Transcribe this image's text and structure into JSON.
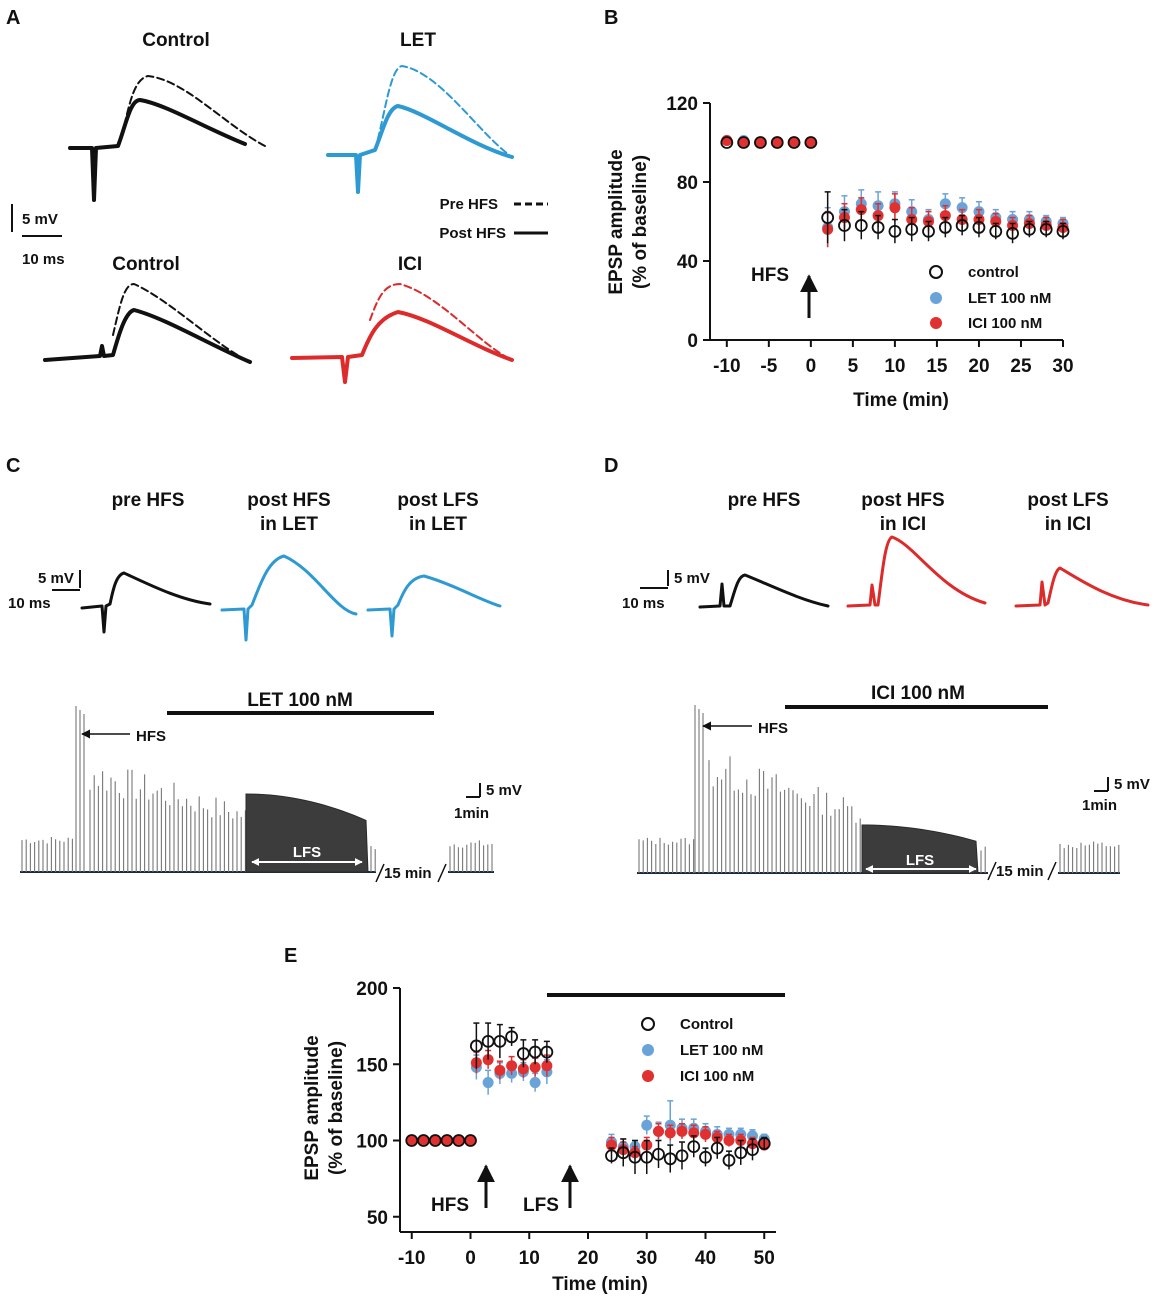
{
  "colors": {
    "control": "#111111",
    "let": "#2e9ad3",
    "ici": "#dd2a2a",
    "let_marker": "#6aa3d8",
    "ici_marker": "#e03030"
  },
  "panel_labels": {
    "a": "A",
    "b": "B",
    "c": "C",
    "d": "D",
    "e": "E"
  },
  "panel_a": {
    "titles": [
      "Control",
      "LET",
      "Control",
      "ICI"
    ],
    "scale_mv": "5 mV",
    "scale_ms": "10 ms",
    "legend_pre": "Pre HFS",
    "legend_post": "Post HFS"
  },
  "panel_c": {
    "titles": [
      "pre HFS",
      "post HFS",
      "in LET",
      "post LFS",
      "in LET"
    ],
    "scale_mv": "5 mV",
    "scale_ms": "10 ms",
    "drug_label": "LET 100 nM",
    "hfs_label": "HFS",
    "lfs_label": "LFS",
    "gap_label": "15 min",
    "scale2_mv": "5 mV",
    "scale2_min": "1min"
  },
  "panel_d": {
    "titles": [
      "pre HFS",
      "post HFS",
      "in ICI",
      "post LFS",
      "in ICI"
    ],
    "scale_mv": "5 mV",
    "scale_ms": "10 ms",
    "drug_label": "ICI 100 nM",
    "hfs_label": "HFS",
    "lfs_label": "LFS",
    "gap_label": "15 min",
    "scale2_mv": "5 mV",
    "scale2_min": "1min"
  },
  "chart_data": [
    {
      "panel": "B",
      "type": "scatter",
      "xlabel": "Time (min)",
      "ylabel_line1": "EPSP amplitude",
      "ylabel_line2": "(% of baseline)",
      "xlim": [
        -12,
        30
      ],
      "ylim": [
        0,
        120
      ],
      "xticks": [
        -10,
        -5,
        0,
        5,
        10,
        15,
        20,
        25,
        30
      ],
      "yticks": [
        0,
        40,
        80,
        120
      ],
      "annotation": "HFS",
      "annotation_x": 0,
      "x": [
        -10,
        -8,
        -6,
        -4,
        -2,
        0,
        2,
        4,
        6,
        8,
        10,
        12,
        14,
        16,
        18,
        20,
        22,
        24,
        26,
        28,
        30
      ],
      "series": [
        {
          "name": "control",
          "marker": "open",
          "values": [
            100,
            100,
            100,
            100,
            100,
            100,
            62,
            58,
            58,
            57,
            55,
            56,
            55,
            57,
            58,
            57,
            55,
            54,
            56,
            56,
            55
          ],
          "errors": [
            1,
            1,
            1,
            1,
            1,
            1,
            13,
            8,
            7,
            6,
            6,
            6,
            5,
            5,
            5,
            5,
            4,
            5,
            4,
            4,
            4
          ]
        },
        {
          "name": "LET 100 nM",
          "marker": "filled",
          "values": [
            101,
            101,
            100,
            100,
            100,
            100,
            57,
            65,
            69,
            68,
            69,
            65,
            61,
            69,
            67,
            65,
            62,
            61,
            61,
            60,
            59
          ],
          "errors": [
            1,
            1,
            1,
            1,
            1,
            1,
            10,
            8,
            7,
            7,
            6,
            6,
            5,
            5,
            5,
            5,
            4,
            4,
            4,
            3,
            3
          ]
        },
        {
          "name": "ICI 100 nM",
          "marker": "filled",
          "values": [
            101,
            100,
            100,
            100,
            100,
            100,
            56,
            62,
            66,
            63,
            67,
            61,
            60,
            63,
            61,
            61,
            60,
            58,
            59,
            58,
            57
          ],
          "errors": [
            1,
            1,
            1,
            1,
            1,
            1,
            9,
            7,
            6,
            6,
            7,
            6,
            5,
            5,
            5,
            5,
            4,
            4,
            4,
            4,
            4
          ]
        }
      ]
    },
    {
      "panel": "E",
      "type": "scatter",
      "xlabel": "Time (min)",
      "ylabel_line1": "EPSP amplitude",
      "ylabel_line2": "(% of baseline)",
      "xlim": [
        -12,
        52
      ],
      "ylim": [
        40,
        200
      ],
      "xticks": [
        -10,
        0,
        10,
        20,
        30,
        40,
        50
      ],
      "yticks": [
        50,
        100,
        150,
        200
      ],
      "annotations": [
        {
          "label": "HFS",
          "x": 0
        },
        {
          "label": "LFS",
          "x": 15
        }
      ],
      "drug_bar_start": 10,
      "x": [
        -10,
        -8,
        -6,
        -4,
        -2,
        0,
        1,
        3,
        5,
        7,
        9,
        11,
        13,
        15,
        24,
        26,
        28,
        30,
        32,
        34,
        36,
        38,
        40,
        42,
        44,
        46,
        48,
        50
      ],
      "series": [
        {
          "name": "Control",
          "marker": "open",
          "values": [
            100,
            100,
            100,
            100,
            100,
            100,
            162,
            165,
            165,
            168,
            157,
            158,
            158,
            null,
            90,
            92,
            89,
            89,
            91,
            88,
            90,
            96,
            89,
            95,
            87,
            92,
            94,
            98
          ],
          "errors": [
            1,
            1,
            1,
            1,
            1,
            1,
            15,
            12,
            11,
            6,
            9,
            8,
            7,
            null,
            5,
            9,
            11,
            11,
            9,
            9,
            9,
            7,
            6,
            7,
            6,
            8,
            7,
            4
          ]
        },
        {
          "name": "LET 100 nM",
          "marker": "filled",
          "values": [
            100,
            100,
            100,
            100,
            100,
            100,
            148,
            138,
            144,
            144,
            145,
            138,
            145,
            null,
            99,
            96,
            96,
            110,
            106,
            110,
            108,
            108,
            106,
            104,
            104,
            104,
            103,
            101
          ],
          "errors": [
            1,
            1,
            1,
            1,
            1,
            1,
            8,
            8,
            7,
            6,
            6,
            6,
            8,
            null,
            5,
            5,
            4,
            6,
            6,
            16,
            6,
            6,
            5,
            5,
            4,
            4,
            4,
            3
          ]
        },
        {
          "name": "ICI 100 nM",
          "marker": "filled",
          "values": [
            100,
            100,
            100,
            100,
            100,
            100,
            151,
            153,
            146,
            149,
            147,
            148,
            149,
            null,
            97,
            94,
            92,
            97,
            106,
            105,
            106,
            105,
            104,
            102,
            100,
            100,
            98,
            97
          ],
          "errors": [
            1,
            1,
            1,
            1,
            1,
            1,
            7,
            6,
            6,
            6,
            6,
            6,
            7,
            null,
            5,
            5,
            4,
            5,
            5,
            5,
            5,
            5,
            5,
            4,
            4,
            4,
            4,
            3
          ]
        }
      ]
    }
  ]
}
